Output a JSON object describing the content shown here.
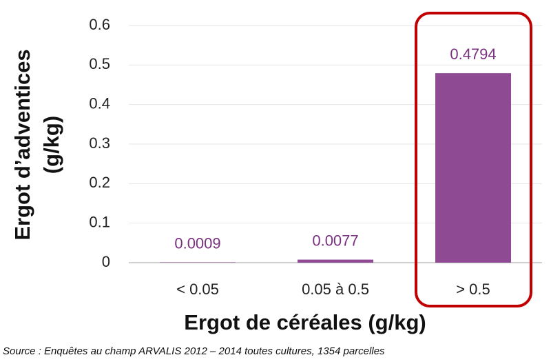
{
  "chart_data": {
    "type": "bar",
    "y_label": [
      "Ergot d’adventices",
      "(g/kg)"
    ],
    "x_label": "Ergot de céréales (g/kg)",
    "source": "Source : Enquêtes au champ ARVALIS 2012 – 2014 toutes cultures, 1354 parcelles",
    "categories": [
      "< 0.05",
      "0.05 à 0.5",
      "> 0.5"
    ],
    "values": [
      0.0009,
      0.0077,
      0.4794
    ],
    "color": "#8e4b94",
    "ylim": [
      0,
      0.6
    ],
    "yticks": [
      0,
      0.1,
      0.2,
      0.3,
      0.4,
      0.5,
      0.6
    ],
    "grid": true
  }
}
